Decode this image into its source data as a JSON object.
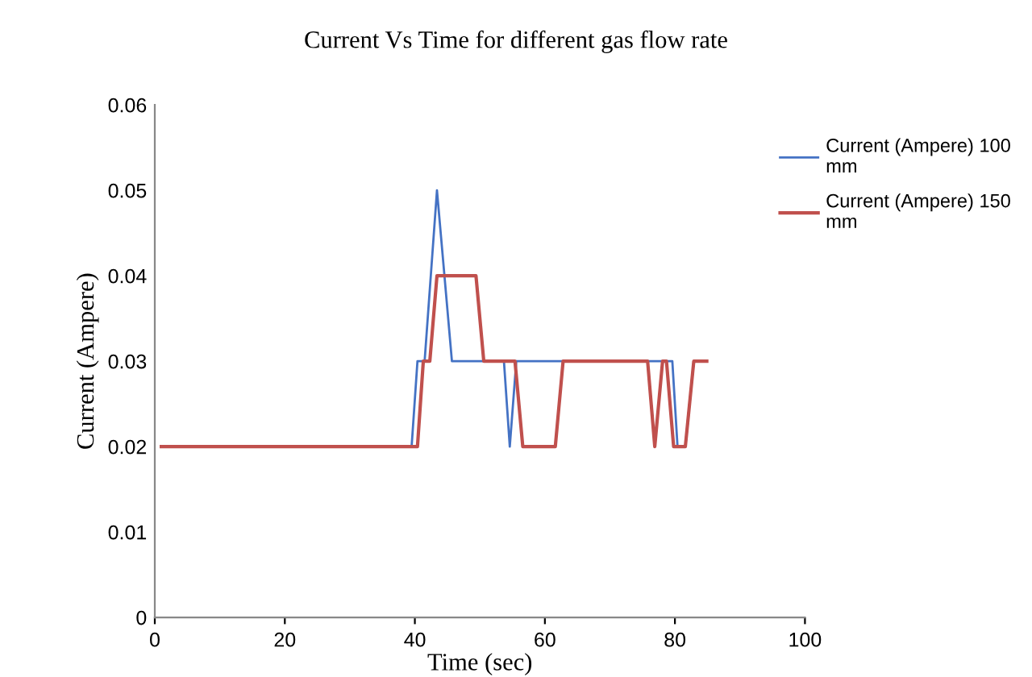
{
  "chart_data": {
    "type": "line",
    "title": "Current Vs Time for different gas flow rate",
    "xlabel": "Time (sec)",
    "ylabel": "Current (Ampere)",
    "xlim": [
      0,
      100
    ],
    "xticks": [
      0,
      20,
      40,
      60,
      80,
      100
    ],
    "ylim": [
      0,
      0.06
    ],
    "yticks": [
      {
        "value": 0,
        "label": "0"
      },
      0.01,
      0.02,
      0.03,
      0.04,
      0.05,
      0.06
    ],
    "grid": false,
    "legend": "right",
    "marker": "none",
    "line_style": "solid",
    "series": [
      {
        "name": "Current (Ampere) 100 mm",
        "color": "#4472c4",
        "x": [
          1,
          39.5,
          40.4,
          41.5,
          43.4,
          45.7,
          53.7,
          54.6,
          55.6,
          79.6,
          80.4,
          81.6,
          82.9,
          84.9
        ],
        "values": [
          0.02,
          0.02,
          0.03,
          0.03,
          0.05,
          0.03,
          0.03,
          0.02,
          0.03,
          0.03,
          0.02,
          0.02,
          0.03,
          0.03
        ]
      },
      {
        "name": "Current (Ampere) 150 mm",
        "color": "#c0504d",
        "x": [
          1,
          40.4,
          41.3,
          42.3,
          43.4,
          49.4,
          50.6,
          55.4,
          56.6,
          61.6,
          62.8,
          75.8,
          76.9,
          78.1,
          78.7,
          79.8,
          81.6,
          82.9,
          84.9
        ],
        "values": [
          0.02,
          0.02,
          0.03,
          0.03,
          0.04,
          0.04,
          0.03,
          0.03,
          0.02,
          0.02,
          0.03,
          0.03,
          0.02,
          0.03,
          0.03,
          0.02,
          0.02,
          0.03,
          0.03
        ]
      }
    ]
  }
}
